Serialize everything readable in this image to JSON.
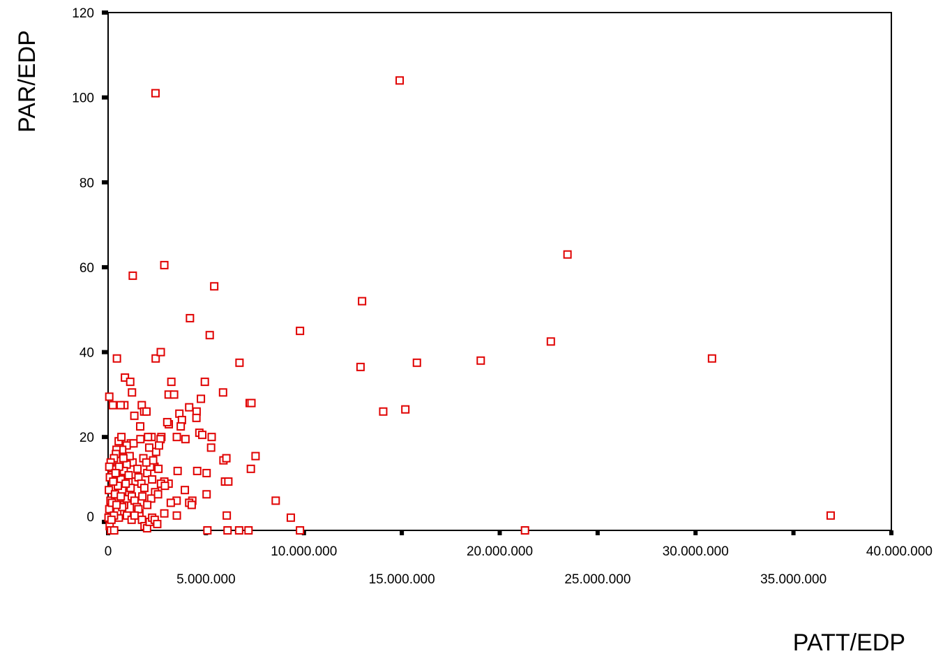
{
  "chart_data": {
    "type": "scatter",
    "xlabel": "PATT/EDP",
    "ylabel": "PAR/EDP",
    "xlim": [
      0,
      40000000
    ],
    "ylim": [
      -2,
      120
    ],
    "x_ticks": [
      {
        "value": 0,
        "label": "0",
        "row": 0
      },
      {
        "value": 5000000,
        "label": "5.000.000",
        "row": 1
      },
      {
        "value": 10000000,
        "label": "10.000.000",
        "row": 0
      },
      {
        "value": 15000000,
        "label": "15.000.000",
        "row": 1
      },
      {
        "value": 20000000,
        "label": "20.000.000",
        "row": 0
      },
      {
        "value": 25000000,
        "label": "25.000.000",
        "row": 1
      },
      {
        "value": 30000000,
        "label": "30.000.000",
        "row": 0
      },
      {
        "value": 35000000,
        "label": "35.000.000",
        "row": 1
      },
      {
        "value": 40000000,
        "label": "40.000.000",
        "row": 0
      }
    ],
    "y_ticks": [
      {
        "value": 0,
        "label": "0"
      },
      {
        "value": 20,
        "label": "20"
      },
      {
        "value": 40,
        "label": "40"
      },
      {
        "value": 60,
        "label": "60"
      },
      {
        "value": 80,
        "label": "80"
      },
      {
        "value": 100,
        "label": "100"
      },
      {
        "value": 120,
        "label": "120"
      }
    ],
    "grid": false,
    "marker": "open-square",
    "marker_color": "#e00000",
    "points": [
      [
        2420000,
        101
      ],
      [
        14890000,
        104
      ],
      [
        23460000,
        63
      ],
      [
        2870000,
        60.5
      ],
      [
        1260000,
        58
      ],
      [
        5420000,
        55.5
      ],
      [
        12970000,
        52
      ],
      [
        4180000,
        48
      ],
      [
        5190000,
        44
      ],
      [
        9800000,
        45
      ],
      [
        22610000,
        42.5
      ],
      [
        30840000,
        38.5
      ],
      [
        36900000,
        1.5
      ],
      [
        19030000,
        38
      ],
      [
        15770000,
        37.5
      ],
      [
        12890000,
        36.5
      ],
      [
        6710000,
        37.5
      ],
      [
        2430000,
        38.5
      ],
      [
        2690000,
        40
      ],
      [
        450000,
        38.5
      ],
      [
        14050000,
        26
      ],
      [
        15180000,
        26.5
      ],
      [
        21290000,
        -2
      ],
      [
        7230000,
        28
      ],
      [
        7320000,
        28
      ],
      [
        5870000,
        30.5
      ],
      [
        4940000,
        33
      ],
      [
        3230000,
        33
      ],
      [
        3090000,
        30
      ],
      [
        3370000,
        30
      ],
      [
        4740000,
        29
      ],
      [
        3100000,
        23
      ],
      [
        3020000,
        23.5
      ],
      [
        3640000,
        25.5
      ],
      [
        4140000,
        27
      ],
      [
        4520000,
        26
      ],
      [
        3770000,
        24
      ],
      [
        4510000,
        24.5
      ],
      [
        4660000,
        21
      ],
      [
        4810000,
        20.5
      ],
      [
        5290000,
        20
      ],
      [
        5260000,
        17.5
      ],
      [
        3510000,
        20
      ],
      [
        3950000,
        19.5
      ],
      [
        2720000,
        20
      ],
      [
        3710000,
        22.5
      ],
      [
        5890000,
        14.5
      ],
      [
        6040000,
        15
      ],
      [
        7530000,
        15.5
      ],
      [
        7290000,
        12.5
      ],
      [
        4550000,
        12
      ],
      [
        5030000,
        11.5
      ],
      [
        5970000,
        9.5
      ],
      [
        6140000,
        9.5
      ],
      [
        3920000,
        7.5
      ],
      [
        4300000,
        5
      ],
      [
        3500000,
        5
      ],
      [
        4140000,
        4.5
      ],
      [
        4270000,
        4
      ],
      [
        5030000,
        6.5
      ],
      [
        3550000,
        12
      ],
      [
        3090000,
        9
      ],
      [
        2870000,
        9.5
      ],
      [
        2370000,
        13
      ],
      [
        2570000,
        12.5
      ],
      [
        6060000,
        1.5
      ],
      [
        5070000,
        -2
      ],
      [
        6100000,
        -2
      ],
      [
        6690000,
        -2
      ],
      [
        7170000,
        -2
      ],
      [
        8560000,
        5
      ],
      [
        9330000,
        1
      ],
      [
        9800000,
        -2
      ],
      [
        3510000,
        1.5
      ],
      [
        2870000,
        2
      ],
      [
        60000,
        29.5
      ],
      [
        240000,
        27.5
      ],
      [
        830000,
        27.5
      ],
      [
        640000,
        27.5
      ],
      [
        860000,
        34
      ],
      [
        1130000,
        33
      ],
      [
        1220000,
        30.5
      ],
      [
        1720000,
        27.5
      ],
      [
        1840000,
        26
      ],
      [
        1960000,
        26
      ],
      [
        1340000,
        25
      ],
      [
        1640000,
        22.5
      ],
      [
        2220000,
        20
      ],
      [
        2680000,
        19.5
      ],
      [
        2040000,
        20
      ],
      [
        1160000,
        18.5
      ],
      [
        1300000,
        18.5
      ],
      [
        950000,
        18
      ],
      [
        720000,
        17
      ],
      [
        540000,
        19
      ],
      [
        680000,
        20
      ],
      [
        430000,
        17
      ],
      [
        400000,
        16
      ],
      [
        300000,
        15
      ],
      [
        130000,
        14
      ],
      [
        60000,
        13
      ],
      [
        200000,
        11
      ],
      [
        90000,
        10.5
      ],
      [
        230000,
        8
      ],
      [
        40000,
        7.5
      ],
      [
        120000,
        5
      ],
      [
        60000,
        3
      ],
      [
        20000,
        1
      ],
      [
        80000,
        -1
      ],
      [
        150000,
        -2
      ],
      [
        310000,
        -2
      ],
      [
        550000,
        1
      ],
      [
        680000,
        2.5
      ],
      [
        820000,
        4
      ],
      [
        950000,
        5.5
      ],
      [
        1080000,
        7
      ],
      [
        1210000,
        6
      ],
      [
        1350000,
        5
      ],
      [
        1470000,
        3.5
      ],
      [
        1600000,
        2
      ],
      [
        1730000,
        0.5
      ],
      [
        1860000,
        -1
      ],
      [
        1990000,
        -1.5
      ],
      [
        2120000,
        0
      ],
      [
        2250000,
        1
      ],
      [
        2380000,
        0.5
      ],
      [
        2510000,
        -0.5
      ],
      [
        1400000,
        9.5
      ],
      [
        1550000,
        10.5
      ],
      [
        1700000,
        9
      ],
      [
        1850000,
        8
      ],
      [
        2000000,
        11.5
      ],
      [
        2150000,
        13
      ],
      [
        2300000,
        14.5
      ],
      [
        2450000,
        16.5
      ],
      [
        1250000,
        14
      ],
      [
        1100000,
        15.5
      ],
      [
        950000,
        13.5
      ],
      [
        800000,
        12
      ],
      [
        650000,
        10
      ],
      [
        500000,
        8.5
      ],
      [
        350000,
        6.5
      ],
      [
        200000,
        4.5
      ],
      [
        470000,
        2.5
      ],
      [
        720000,
        3.5
      ],
      [
        960000,
        1.5
      ],
      [
        1200000,
        0.5
      ],
      [
        1500000,
        12.5
      ],
      [
        1800000,
        15
      ],
      [
        2100000,
        17.5
      ],
      [
        2600000,
        18
      ],
      [
        2400000,
        7
      ],
      [
        2200000,
        5.5
      ],
      [
        2000000,
        4
      ],
      [
        1750000,
        6
      ],
      [
        1550000,
        3
      ],
      [
        1350000,
        1.5
      ],
      [
        1150000,
        8
      ],
      [
        900000,
        9
      ],
      [
        650000,
        6
      ],
      [
        430000,
        4
      ],
      [
        300000,
        1.5
      ],
      [
        170000,
        0.5
      ],
      [
        2700000,
        9
      ],
      [
        2900000,
        8.5
      ],
      [
        3200000,
        4.5
      ],
      [
        1050000,
        11
      ],
      [
        780000,
        15
      ],
      [
        560000,
        13
      ],
      [
        380000,
        11.5
      ],
      [
        260000,
        9.5
      ],
      [
        1650000,
        19.5
      ],
      [
        1950000,
        14
      ],
      [
        2250000,
        10
      ],
      [
        2550000,
        6.5
      ]
    ]
  }
}
